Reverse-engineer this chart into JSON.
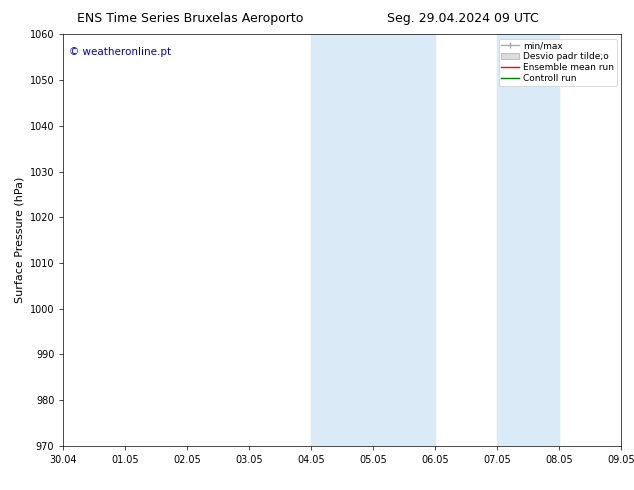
{
  "title_left": "ENS Time Series Bruxelas Aeroporto",
  "title_right": "Seg. 29.04.2024 09 UTC",
  "ylabel": "Surface Pressure (hPa)",
  "ylim": [
    970,
    1060
  ],
  "yticks": [
    970,
    980,
    990,
    1000,
    1010,
    1020,
    1030,
    1040,
    1050,
    1060
  ],
  "xtick_labels": [
    "30.04",
    "01.05",
    "02.05",
    "03.05",
    "04.05",
    "05.05",
    "06.05",
    "07.05",
    "08.05",
    "09.05"
  ],
  "xtick_positions": [
    0,
    1,
    2,
    3,
    4,
    5,
    6,
    7,
    8,
    9
  ],
  "shaded_regions": [
    {
      "xmin": 4,
      "xmax": 6,
      "color": "#daeaf7"
    },
    {
      "xmin": 7,
      "xmax": 8,
      "color": "#daeaf7"
    }
  ],
  "watermark": "© weatheronline.pt",
  "watermark_color": "#0000cc",
  "legend_labels": [
    "min/max",
    "Desvio padr tilde;o",
    "Ensemble mean run",
    "Controll run"
  ],
  "legend_colors": [
    "#aaaaaa",
    "#cccccc",
    "#ff0000",
    "#008000"
  ],
  "legend_styles": [
    "line",
    "patch",
    "line",
    "line"
  ],
  "bg_color": "#ffffff",
  "plot_bg_color": "#ffffff",
  "title_fontsize": 9,
  "tick_fontsize": 7,
  "ylabel_fontsize": 8,
  "watermark_fontsize": 7.5,
  "legend_fontsize": 6.5
}
